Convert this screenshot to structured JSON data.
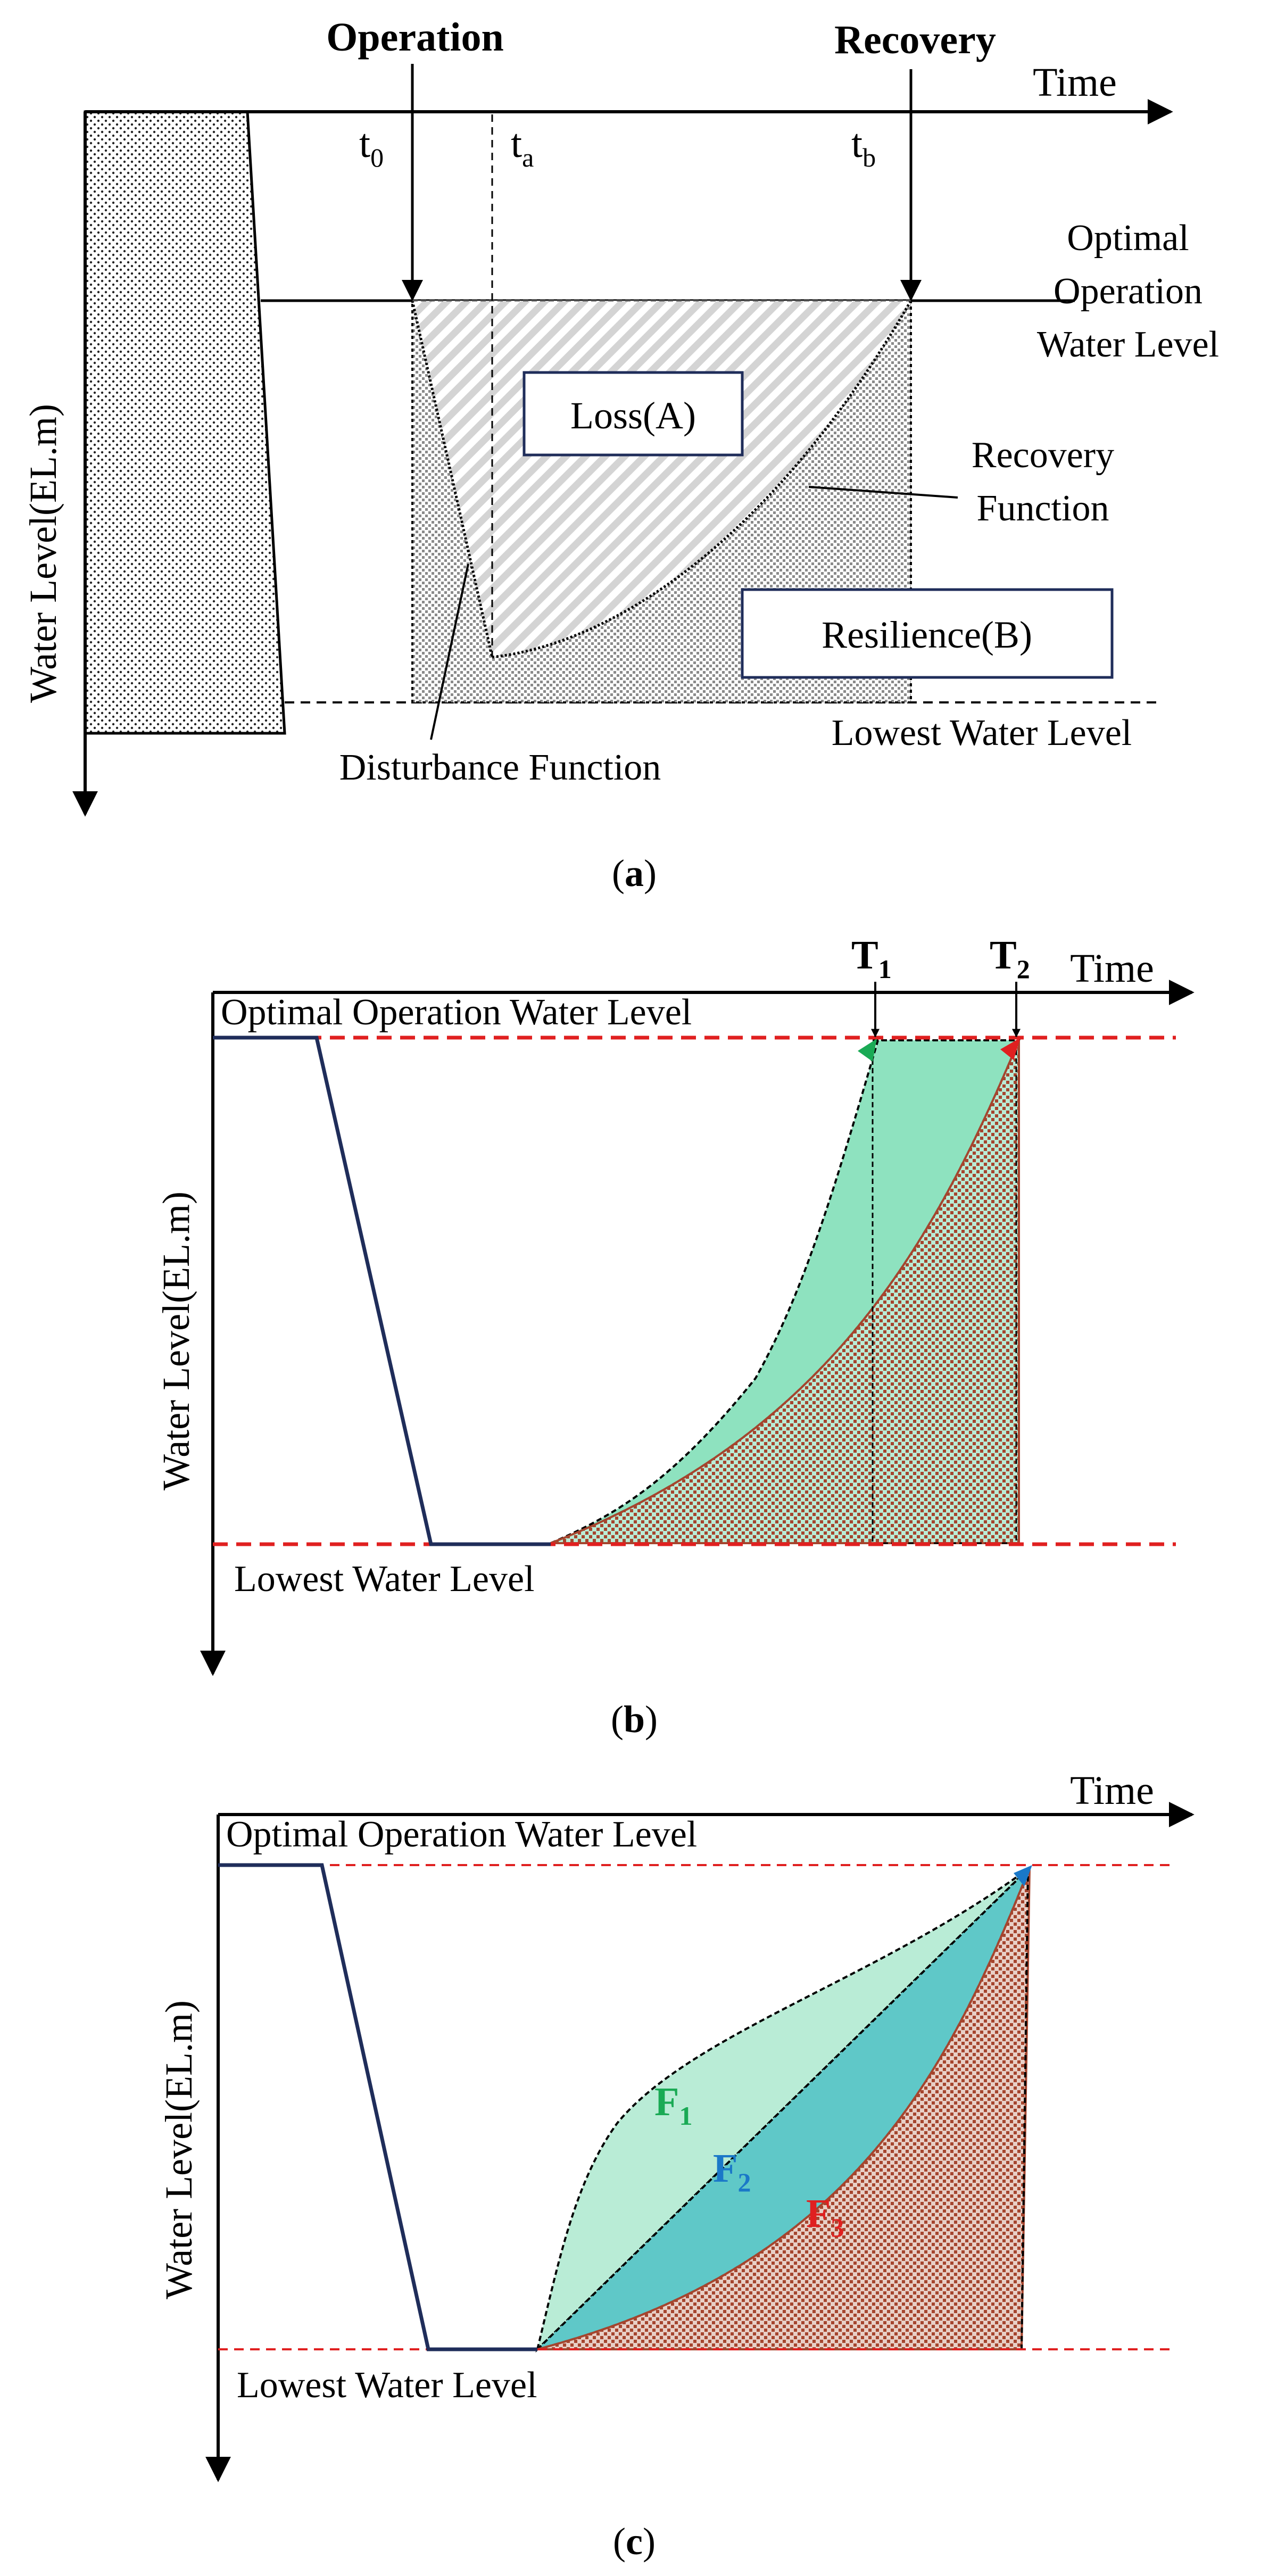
{
  "colors": {
    "axis": "#000000",
    "navy_line": "#1f2d5a",
    "red_dash": "#e02020",
    "green_fill": "#8ee2bf",
    "light_green_fill": "#b9ecd6",
    "teal_fill": "#5fc8c8",
    "brown_dot": "#a5452e",
    "gray_dot": "#8a8a8a",
    "f1_color": "#1aaa55",
    "f2_color": "#1a78c8",
    "f3_color": "#e02020"
  },
  "panel_a": {
    "caption_open": "(",
    "caption_letter": "a",
    "caption_close": ")",
    "operation": "Operation",
    "recovery": "Recovery",
    "time": "Time",
    "t0_base": "t",
    "t0_sub": "0",
    "ta_base": "t",
    "ta_sub": "a",
    "tb_base": "t",
    "tb_sub": "b",
    "optimal_line1": "Optimal",
    "optimal_line2": "Operation",
    "optimal_line3": "Water Level",
    "loss": "Loss(A)",
    "resilience": "Resilience(B)",
    "recovery_fn_line1": "Recovery",
    "recovery_fn_line2": "Function",
    "lowest": "Lowest Water Level",
    "disturbance": "Disturbance Function",
    "ylabel": "Water Level(EL.m)"
  },
  "panel_b": {
    "caption_open": "(",
    "caption_letter": "b",
    "caption_close": ")",
    "time": "Time",
    "T1_base": "T",
    "T1_sub": "1",
    "T2_base": "T",
    "T2_sub": "2",
    "optimal": "Optimal Operation Water Level",
    "lowest": "Lowest Water Level",
    "ylabel": "Water Level(EL.m)"
  },
  "panel_c": {
    "caption_open": "(",
    "caption_letter": "c",
    "caption_close": ")",
    "time": "Time",
    "optimal": "Optimal Operation Water Level",
    "lowest": "Lowest Water Level",
    "ylabel": "Water Level(EL.m)",
    "F1_base": "F",
    "F1_sub": "1",
    "F2_base": "F",
    "F2_sub": "2",
    "F3_base": "F",
    "F3_sub": "3"
  }
}
